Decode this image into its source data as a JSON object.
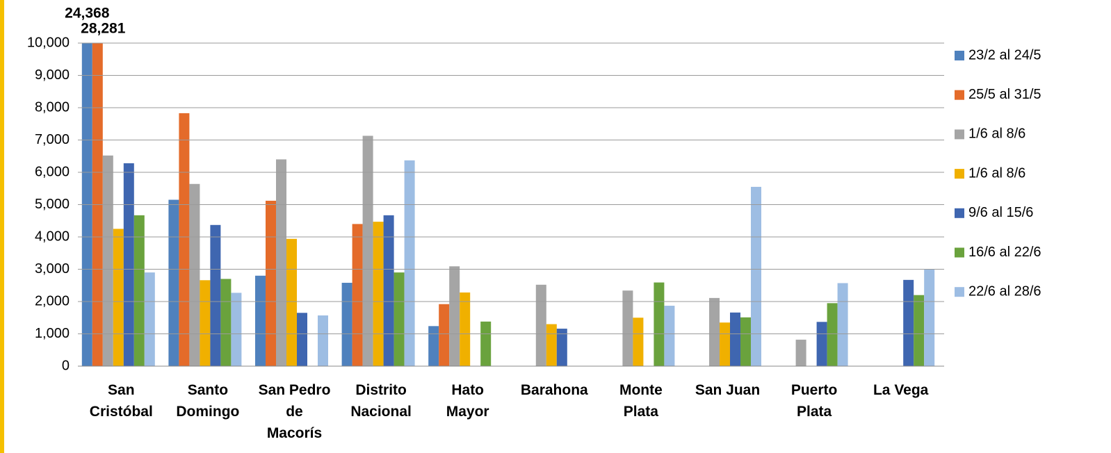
{
  "chart_data": {
    "type": "bar",
    "categories": [
      "San Cristóbal",
      "Santo Domingo",
      "San Pedro de Macorís",
      "Distrito Nacional",
      "Hato Mayor",
      "Barahona",
      "Monte Plata",
      "San Juan",
      "Puerto Plata",
      "La Vega"
    ],
    "series": [
      {
        "name": "23/2 al 24/5",
        "color": "#4f81bd",
        "values": [
          24368,
          5150,
          2800,
          2580,
          1240,
          null,
          null,
          null,
          null,
          null
        ],
        "value_labels": [
          "24,368",
          null,
          null,
          null,
          null,
          null,
          null,
          null,
          null,
          null
        ]
      },
      {
        "name": "25/5 al 31/5",
        "color": "#e46b2a",
        "values": [
          28281,
          7830,
          5120,
          4400,
          1920,
          null,
          null,
          null,
          null,
          null
        ],
        "value_labels": [
          "28,281",
          null,
          null,
          null,
          null,
          null,
          null,
          null,
          null,
          null
        ]
      },
      {
        "name": "1/6 al 8/6",
        "color": "#a5a5a5",
        "values": [
          6520,
          5640,
          6400,
          7130,
          3090,
          2520,
          2340,
          2110,
          820,
          null
        ]
      },
      {
        "name": "1/6 al 8/6",
        "color": "#f0b000",
        "values": [
          4250,
          2660,
          3940,
          4470,
          2280,
          1300,
          1500,
          1350,
          null,
          null
        ]
      },
      {
        "name": "9/6 al 15/6",
        "color": "#3f66b0",
        "values": [
          6280,
          4370,
          1650,
          4670,
          null,
          1160,
          null,
          1660,
          1370,
          2670
        ]
      },
      {
        "name": "16/6 al 22/6",
        "color": "#6aa23d",
        "values": [
          4670,
          2700,
          null,
          2900,
          1380,
          null,
          2590,
          1510,
          1950,
          2200
        ]
      },
      {
        "name": "22/6 al 28/6",
        "color": "#9dbde3",
        "values": [
          2900,
          2270,
          1570,
          6370,
          null,
          null,
          1870,
          5550,
          2570,
          3000
        ]
      }
    ],
    "ylim": [
      0,
      10000
    ],
    "yticks": [
      0,
      {
        "value": 1000,
        "label": "1,000"
      },
      {
        "value": 2000,
        "label": "2,000"
      },
      {
        "value": 3000,
        "label": "3,000"
      },
      {
        "value": 4000,
        "label": "4,000"
      },
      {
        "value": 5000,
        "label": "5,000"
      },
      {
        "value": 6000,
        "label": "6,000"
      },
      {
        "value": 7000,
        "label": "7,000"
      },
      {
        "value": 8000,
        "label": "8,000"
      },
      {
        "value": 9000,
        "label": "9,000"
      },
      {
        "value": 10000,
        "label": "10,000"
      }
    ],
    "grid": true,
    "legend": "right"
  }
}
